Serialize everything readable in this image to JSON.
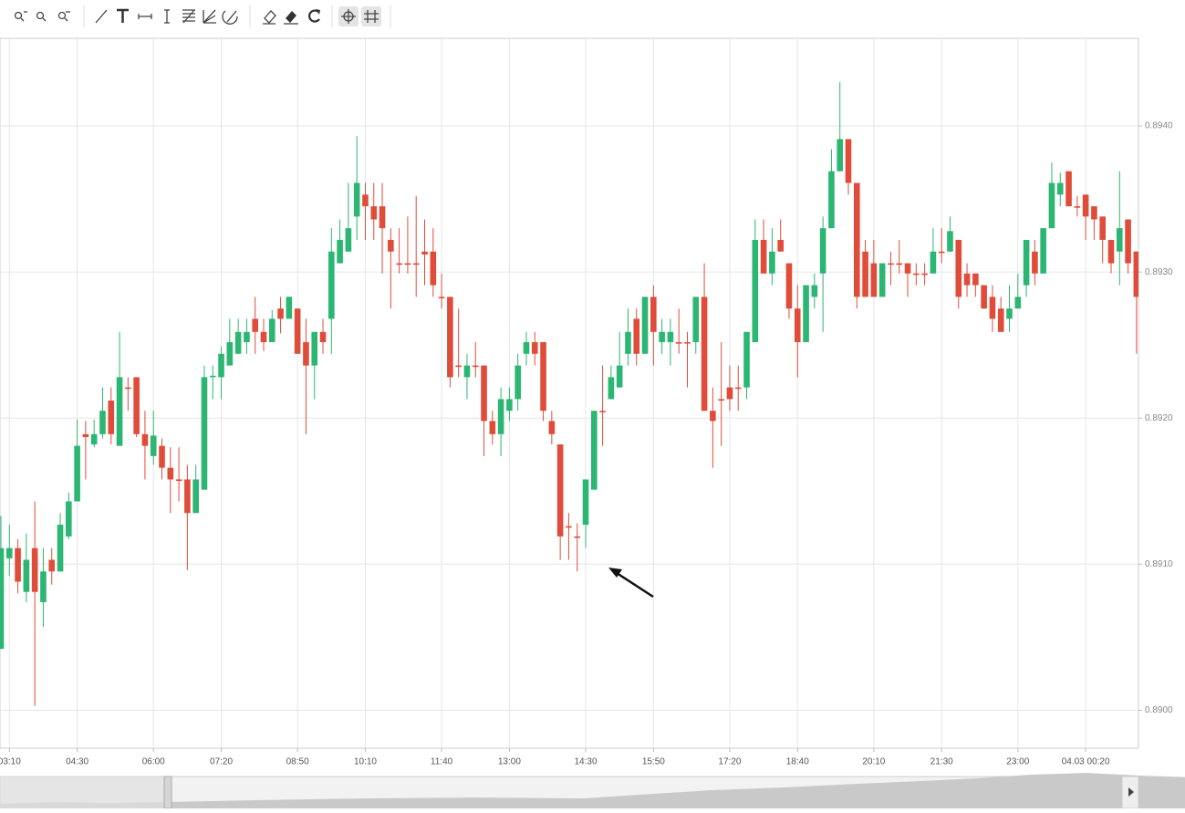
{
  "chart_data": {
    "type": "candlestick",
    "categories": [
      null,
      "03:10",
      null,
      null,
      null,
      null,
      null,
      null,
      null,
      "04:30",
      null,
      null,
      null,
      null,
      null,
      null,
      null,
      null,
      "06:00",
      null,
      null,
      null,
      null,
      null,
      null,
      null,
      "07:20",
      null,
      null,
      null,
      null,
      null,
      null,
      null,
      null,
      "08:50",
      null,
      null,
      null,
      null,
      null,
      null,
      null,
      "10:10",
      null,
      null,
      null,
      null,
      null,
      null,
      null,
      null,
      "11:40",
      null,
      null,
      null,
      null,
      null,
      null,
      null,
      "13:00",
      null,
      null,
      null,
      null,
      null,
      null,
      null,
      null,
      "14:30",
      null,
      null,
      null,
      null,
      null,
      null,
      null,
      "15:50",
      null,
      null,
      null,
      null,
      null,
      null,
      null,
      null,
      "17:20",
      null,
      null,
      null,
      null,
      null,
      null,
      null,
      "18:40",
      null,
      null,
      null,
      null,
      null,
      null,
      null,
      null,
      "20:10",
      null,
      null,
      null,
      null,
      null,
      null,
      null,
      "21:30",
      null,
      null,
      null,
      null,
      null,
      null,
      null,
      null,
      "23:00",
      null,
      null,
      null,
      null,
      null,
      null,
      null,
      "04.03 00:20",
      null,
      null,
      null,
      null,
      null,
      null
    ],
    "open": [
      0.89042,
      0.89104,
      0.89111,
      0.89081,
      0.89111,
      0.89074,
      0.89103,
      0.89095,
      0.89119,
      0.89143,
      0.89189,
      0.89182,
      0.89189,
      0.89212,
      0.89181,
      0.89221,
      0.89228,
      0.89189,
      0.89174,
      0.89181,
      0.89166,
      0.89158,
      0.89158,
      0.89135,
      0.89151,
      0.89228,
      0.89228,
      0.89236,
      0.89244,
      0.89252,
      0.89268,
      0.89259,
      0.89252,
      0.89275,
      0.89268,
      0.89275,
      0.89252,
      0.89236,
      0.89259,
      0.89268,
      0.89306,
      0.89314,
      0.89338,
      0.89353,
      0.89345,
      0.89345,
      0.89322,
      0.89306,
      0.89306,
      0.89306,
      0.89314,
      0.89314,
      0.89283,
      0.89283,
      0.89236,
      0.89228,
      0.89236,
      0.89236,
      0.89198,
      0.89189,
      0.89205,
      0.89213,
      0.89244,
      0.89252,
      0.89252,
      0.89198,
      0.89182,
      0.89126,
      0.89119,
      0.89127,
      0.89151,
      0.89205,
      0.89213,
      0.89221,
      0.89244,
      0.89268,
      0.89244,
      0.89283,
      0.89252,
      0.89252,
      0.89252,
      0.89252,
      0.89252,
      0.89283,
      0.89205,
      0.89213,
      0.89221,
      0.89221,
      0.89221,
      0.89252,
      0.89322,
      0.89299,
      0.89322,
      0.89306,
      0.89275,
      0.89252,
      0.89283,
      0.89299,
      0.8933,
      0.89369,
      0.89391,
      0.89361,
      0.89314,
      0.89306,
      0.89283,
      0.89306,
      0.89306,
      0.89306,
      0.89299,
      0.89299,
      0.89299,
      0.89314,
      0.89314,
      0.89322,
      0.89299,
      0.89299,
      0.89291,
      0.89283,
      0.89275,
      0.89268,
      0.89275,
      0.89291,
      0.89314,
      0.89299,
      0.8933,
      0.89353,
      0.89369,
      0.89345,
      0.89353,
      0.89345,
      0.89338,
      0.89322,
      0.89314,
      0.89336,
      0.89314
    ],
    "high": [
      0.89133,
      0.89127,
      0.89117,
      0.89121,
      0.89143,
      0.89111,
      0.89111,
      0.89135,
      0.89149,
      0.89199,
      0.89198,
      0.89199,
      0.89221,
      0.89221,
      0.89259,
      0.89228,
      0.89228,
      0.89205,
      0.89205,
      0.89186,
      0.8918,
      0.8918,
      0.89168,
      0.89168,
      0.89236,
      0.89236,
      0.89249,
      0.89268,
      0.89268,
      0.89268,
      0.89283,
      0.89268,
      0.89274,
      0.89283,
      0.89283,
      0.89275,
      0.89268,
      0.89259,
      0.89268,
      0.8933,
      0.89336,
      0.89361,
      0.89393,
      0.89361,
      0.89361,
      0.89361,
      0.8933,
      0.8933,
      0.89338,
      0.89352,
      0.89336,
      0.8933,
      0.89299,
      0.89283,
      0.89275,
      0.89244,
      0.89252,
      0.89236,
      0.89205,
      0.89221,
      0.89221,
      0.89244,
      0.89259,
      0.89259,
      0.89252,
      0.89205,
      0.89182,
      0.89135,
      0.89128,
      0.89158,
      0.89205,
      0.89236,
      0.89236,
      0.89259,
      0.89275,
      0.89275,
      0.89283,
      0.89291,
      0.89268,
      0.89268,
      0.89275,
      0.89259,
      0.89283,
      0.89306,
      0.89221,
      0.89252,
      0.89236,
      0.89236,
      0.89259,
      0.89336,
      0.89336,
      0.8933,
      0.89336,
      0.89306,
      0.89291,
      0.89291,
      0.89299,
      0.89338,
      0.89384,
      0.8943,
      0.89391,
      0.89361,
      0.89322,
      0.89322,
      0.89306,
      0.89314,
      0.89322,
      0.89306,
      0.89306,
      0.89306,
      0.8933,
      0.8933,
      0.89338,
      0.89322,
      0.89306,
      0.89299,
      0.89291,
      0.89291,
      0.89283,
      0.89291,
      0.89299,
      0.89322,
      0.89322,
      0.8933,
      0.89375,
      0.89368,
      0.89369,
      0.89352,
      0.89353,
      0.89345,
      0.89338,
      0.89322,
      0.89369,
      0.89336,
      0.89314
    ],
    "low": [
      0.89042,
      0.89092,
      0.8908,
      0.89074,
      0.89003,
      0.89057,
      0.89086,
      0.89095,
      0.89117,
      0.89143,
      0.89158,
      0.8918,
      0.89186,
      0.89182,
      0.89181,
      0.89205,
      0.89187,
      0.89158,
      0.89168,
      0.89158,
      0.89135,
      0.89143,
      0.89096,
      0.89135,
      0.89151,
      0.89213,
      0.89213,
      0.89236,
      0.89244,
      0.89244,
      0.89244,
      0.89246,
      0.89252,
      0.89258,
      0.89268,
      0.89244,
      0.89189,
      0.89213,
      0.89244,
      0.89244,
      0.89306,
      0.89314,
      0.89322,
      0.89322,
      0.89322,
      0.89299,
      0.89275,
      0.89299,
      0.89299,
      0.89283,
      0.89291,
      0.89283,
      0.89275,
      0.89221,
      0.89228,
      0.89213,
      0.89228,
      0.89174,
      0.89182,
      0.89174,
      0.89198,
      0.89205,
      0.89236,
      0.89236,
      0.89198,
      0.89182,
      0.89103,
      0.89103,
      0.89095,
      0.89111,
      0.89151,
      0.89181,
      0.89213,
      0.89221,
      0.89236,
      0.89236,
      0.89244,
      0.89236,
      0.89244,
      0.89236,
      0.89244,
      0.89221,
      0.89244,
      0.89205,
      0.89166,
      0.89181,
      0.89205,
      0.89205,
      0.89213,
      0.89252,
      0.89299,
      0.89291,
      0.89314,
      0.89268,
      0.89228,
      0.89252,
      0.89275,
      0.89259,
      0.8933,
      0.89369,
      0.89353,
      0.89275,
      0.89283,
      0.89283,
      0.89283,
      0.89291,
      0.89299,
      0.89283,
      0.89291,
      0.89291,
      0.89299,
      0.89306,
      0.89314,
      0.89275,
      0.89283,
      0.89283,
      0.89275,
      0.89259,
      0.89259,
      0.89259,
      0.89275,
      0.89283,
      0.89291,
      0.89299,
      0.8933,
      0.89345,
      0.89345,
      0.89338,
      0.89322,
      0.89322,
      0.89306,
      0.89299,
      0.89291,
      0.89299,
      0.89244
    ],
    "close": [
      0.89111,
      0.89111,
      0.89088,
      0.89103,
      0.89081,
      0.89095,
      0.89095,
      0.89127,
      0.89143,
      0.89181,
      0.89187,
      0.89189,
      0.89205,
      0.89189,
      0.89228,
      0.8922,
      0.89189,
      0.89181,
      0.89188,
      0.89166,
      0.89158,
      0.89157,
      0.89135,
      0.89158,
      0.89228,
      0.89229,
      0.89244,
      0.89252,
      0.89259,
      0.89259,
      0.89259,
      0.89252,
      0.89268,
      0.89268,
      0.89283,
      0.89244,
      0.89236,
      0.89259,
      0.89252,
      0.89314,
      0.89322,
      0.8933,
      0.89361,
      0.89345,
      0.89336,
      0.8933,
      0.89314,
      0.89305,
      0.89305,
      0.89305,
      0.89312,
      0.89291,
      0.89282,
      0.89228,
      0.89235,
      0.89236,
      0.89235,
      0.89198,
      0.89189,
      0.89213,
      0.89213,
      0.89236,
      0.89252,
      0.89244,
      0.89205,
      0.89189,
      0.89119,
      0.89125,
      0.89118,
      0.89158,
      0.89205,
      0.89204,
      0.89228,
      0.89236,
      0.89259,
      0.89244,
      0.89283,
      0.89259,
      0.89259,
      0.89259,
      0.89251,
      0.89251,
      0.89283,
      0.89205,
      0.89198,
      0.89212,
      0.89213,
      0.8922,
      0.89259,
      0.89322,
      0.89299,
      0.89314,
      0.89314,
      0.89275,
      0.89252,
      0.89291,
      0.89291,
      0.8933,
      0.89369,
      0.89391,
      0.89361,
      0.89283,
      0.89283,
      0.89283,
      0.89306,
      0.89305,
      0.89305,
      0.89299,
      0.89298,
      0.89298,
      0.89314,
      0.89313,
      0.89328,
      0.89283,
      0.89291,
      0.89291,
      0.89275,
      0.89268,
      0.89259,
      0.89275,
      0.89283,
      0.89322,
      0.89299,
      0.8933,
      0.89361,
      0.89361,
      0.89345,
      0.89344,
      0.89338,
      0.89336,
      0.89322,
      0.89306,
      0.8933,
      0.89306,
      0.89283
    ],
    "ylim": [
      0.88974,
      0.8946
    ],
    "yticks": [
      {
        "value": 0.894,
        "label": "0.8940"
      },
      {
        "value": 0.893,
        "label": "0.8930"
      },
      {
        "value": 0.892,
        "label": "0.8920"
      },
      {
        "value": 0.891,
        "label": "0.8910"
      },
      {
        "value": 0.89,
        "label": "0.8900"
      }
    ],
    "up_color": "#2bb673",
    "down_color": "#e04c3a",
    "grid": true
  }
}
